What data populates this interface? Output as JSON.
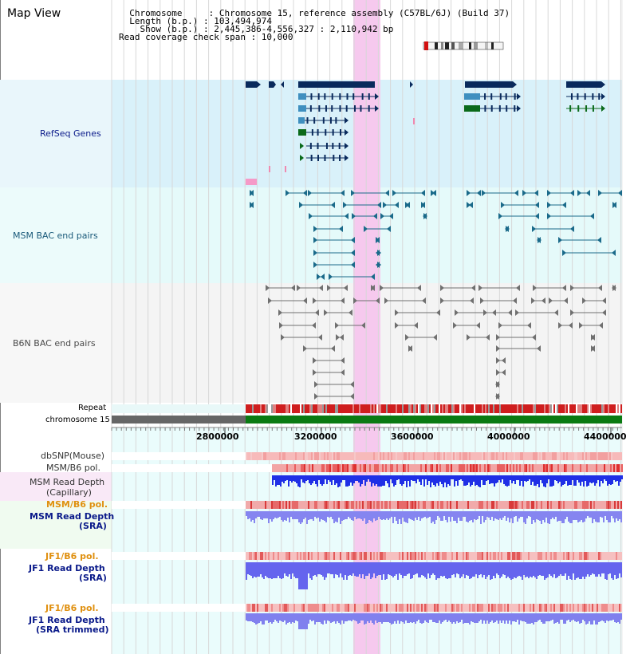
{
  "title": "Map View",
  "header": {
    "line1": "  Chromosome     : Chromosome 15, reference assembly (C57BL/6J) (Build 37)",
    "line2": "  Length (b.p.) : 103,494,974",
    "line3": "    Show (b.p.) : 2,445,386-4,556,327 : 2,110,942 bp",
    "line4": "Read coverage check span : 10,000"
  },
  "tracks": {
    "refseq": "RefSeq Genes",
    "msm_bac": "MSM BAC end pairs",
    "b6n_bac": "B6N BAC end pairs",
    "repeat": "Repeat",
    "chromosome": "chromosome 15",
    "dbsnp": "dbSNP(Mouse)",
    "msm_b6_pol_1": "MSM/B6 pol.",
    "msm_depth_cap_1": "MSM Read Depth",
    "msm_depth_cap_2": "(Capillary)",
    "msm_b6_pol_2": "MSM/B6 pol.",
    "msm_depth_sra_1": "MSM Read Depth",
    "msm_depth_sra_2": "(SRA)",
    "jf1_pol_1": "JF1/B6 pol.",
    "jf1_depth_1": "JF1 Read Depth",
    "jf1_depth_2": "(SRA)",
    "jf1_pol_2": "JF1/B6 pol.",
    "jf1_depth_trim_1": "JF1 Read Depth",
    "jf1_depth_trim_2": "(SRA trimmed)"
  },
  "axis": {
    "ticks": [
      "2800000",
      "3200000",
      "3600000",
      "4000000",
      "4400000"
    ]
  },
  "colors": {
    "refseq_bg": "#d9f1fa",
    "msm_bg": "#e5fafa",
    "b6n_bg": "#f4f4f4",
    "gene": "#0a2a5c",
    "gene_light": "#3f8fbf",
    "gene_green": "#0b6a1a",
    "msm_line": "#1a6a8a",
    "b6n_line": "#707070",
    "highlight": "#f6c9ee",
    "chrom_green": "#0a7a12",
    "label_navy": "#0a1a8a",
    "label_orange": "#e09010"
  }
}
